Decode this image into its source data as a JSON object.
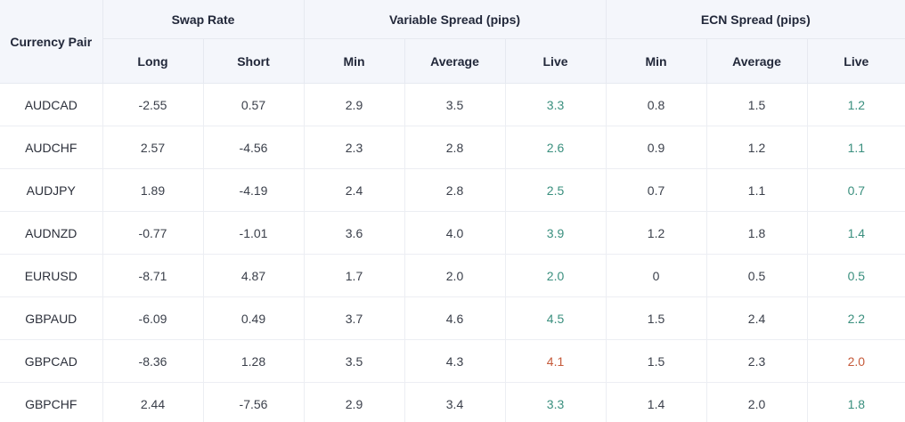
{
  "header": {
    "currency_pair": "Currency Pair",
    "swap_rate": "Swap Rate",
    "variable_spread": "Variable Spread (pips)",
    "ecn_spread": "ECN Spread (pips)",
    "long": "Long",
    "short": "Short",
    "min": "Min",
    "average": "Average",
    "live": "Live"
  },
  "colors": {
    "live_up": "#3a8f7e",
    "live_down": "#c55a3a",
    "header_bg": "#f4f6fb"
  },
  "rows": [
    {
      "pair": "AUDCAD",
      "long": "-2.55",
      "short": "0.57",
      "var_min": "2.9",
      "var_avg": "3.5",
      "var_live": "3.3",
      "var_dir": "up",
      "ecn_min": "0.8",
      "ecn_avg": "1.5",
      "ecn_live": "1.2",
      "ecn_dir": "up"
    },
    {
      "pair": "AUDCHF",
      "long": "2.57",
      "short": "-4.56",
      "var_min": "2.3",
      "var_avg": "2.8",
      "var_live": "2.6",
      "var_dir": "up",
      "ecn_min": "0.9",
      "ecn_avg": "1.2",
      "ecn_live": "1.1",
      "ecn_dir": "up"
    },
    {
      "pair": "AUDJPY",
      "long": "1.89",
      "short": "-4.19",
      "var_min": "2.4",
      "var_avg": "2.8",
      "var_live": "2.5",
      "var_dir": "up",
      "ecn_min": "0.7",
      "ecn_avg": "1.1",
      "ecn_live": "0.7",
      "ecn_dir": "up"
    },
    {
      "pair": "AUDNZD",
      "long": "-0.77",
      "short": "-1.01",
      "var_min": "3.6",
      "var_avg": "4.0",
      "var_live": "3.9",
      "var_dir": "up",
      "ecn_min": "1.2",
      "ecn_avg": "1.8",
      "ecn_live": "1.4",
      "ecn_dir": "up"
    },
    {
      "pair": "EURUSD",
      "long": "-8.71",
      "short": "4.87",
      "var_min": "1.7",
      "var_avg": "2.0",
      "var_live": "2.0",
      "var_dir": "up",
      "ecn_min": "0",
      "ecn_avg": "0.5",
      "ecn_live": "0.5",
      "ecn_dir": "up"
    },
    {
      "pair": "GBPAUD",
      "long": "-6.09",
      "short": "0.49",
      "var_min": "3.7",
      "var_avg": "4.6",
      "var_live": "4.5",
      "var_dir": "up",
      "ecn_min": "1.5",
      "ecn_avg": "2.4",
      "ecn_live": "2.2",
      "ecn_dir": "up"
    },
    {
      "pair": "GBPCAD",
      "long": "-8.36",
      "short": "1.28",
      "var_min": "3.5",
      "var_avg": "4.3",
      "var_live": "4.1",
      "var_dir": "down",
      "ecn_min": "1.5",
      "ecn_avg": "2.3",
      "ecn_live": "2.0",
      "ecn_dir": "down"
    },
    {
      "pair": "GBPCHF",
      "long": "2.44",
      "short": "-7.56",
      "var_min": "2.9",
      "var_avg": "3.4",
      "var_live": "3.3",
      "var_dir": "up",
      "ecn_min": "1.4",
      "ecn_avg": "2.0",
      "ecn_live": "1.8",
      "ecn_dir": "up"
    }
  ]
}
